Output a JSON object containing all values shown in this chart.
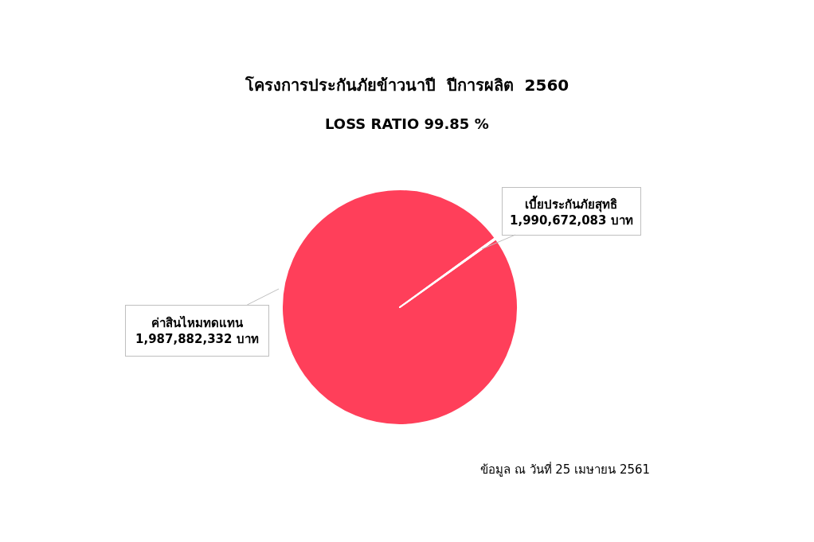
{
  "chart_data": {
    "type": "pie",
    "title": "โครงการประกันภัยข้าวนาปี  ปีการผลิต  2560",
    "subtitle": "LOSS RATIO 99.85 %",
    "categories": [
      "ค่าสินไหมทดแทน",
      "เบี้ยประกันภัยสุทธิ"
    ],
    "values": [
      99.85,
      0.15
    ],
    "colors": [
      "#ff3f5a",
      "#ff3f5a"
    ],
    "legend": false,
    "annotations": [
      "1,987,882,332 บาท",
      "1,990,672,083 บาท",
      "ข้อมูล ณ วันที่ 25 เมษายน 2561"
    ]
  }
}
